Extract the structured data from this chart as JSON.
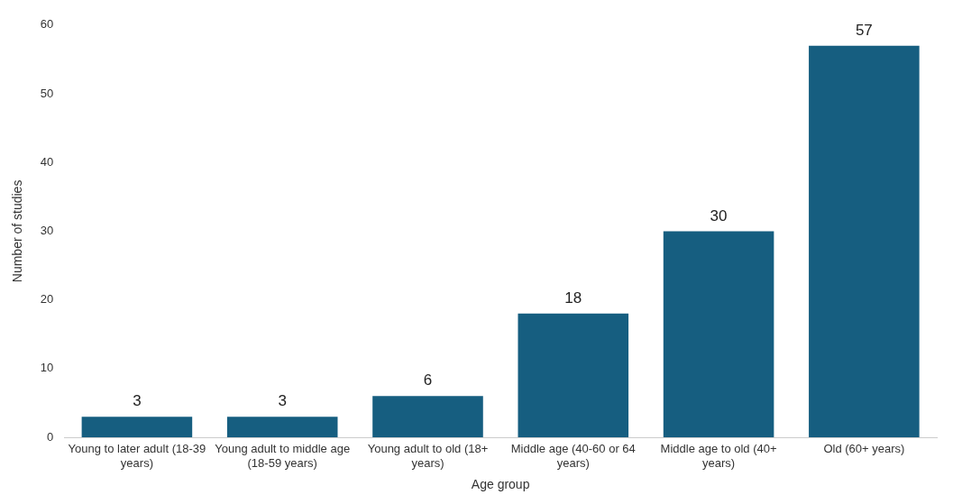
{
  "chart_data": {
    "type": "bar",
    "xlabel": "Age group",
    "ylabel": "Number of studies",
    "categories": [
      "Young to later adult (18-39 years)",
      "Young adult to middle age (18-59 years)",
      "Young adult to old (18+ years)",
      "Middle age (40-60 or 64 years)",
      "Middle age to old (40+ years)",
      "Old (60+ years)"
    ],
    "values": [
      3,
      3,
      6,
      18,
      30,
      57
    ],
    "color": "#165e80",
    "ylim": [
      0,
      60
    ],
    "yticks": [
      0,
      10,
      20,
      30,
      40,
      50,
      60
    ],
    "grid": false,
    "legend": false,
    "data_labels": true
  }
}
